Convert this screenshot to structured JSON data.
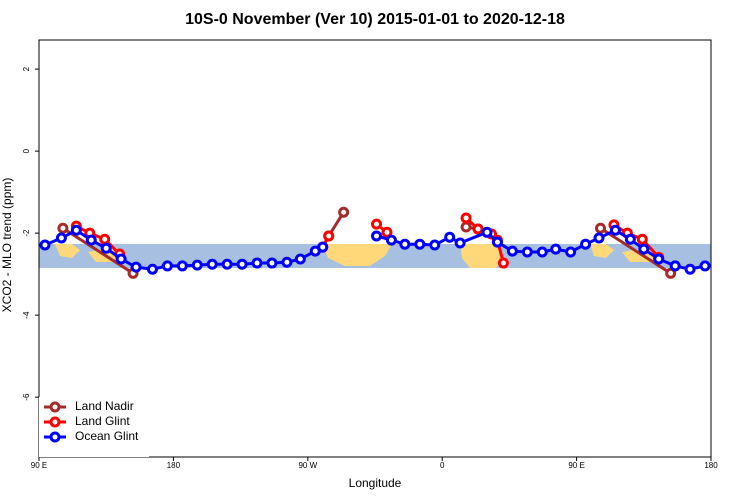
{
  "chart_data": {
    "type": "line",
    "title": "10S-0 November (Ver 10)   2015-01-01 to 2020-12-18",
    "x_label": "Longitude",
    "y_label": "XCO2 - MLO trend (ppm)",
    "xlim": [
      90,
      540
    ],
    "xticks": [
      {
        "value": 90,
        "label": "90 E"
      },
      180,
      {
        "value": 270,
        "label": "90 W"
      },
      {
        "value": 360,
        "label": "0"
      },
      {
        "value": 450,
        "label": "90 E"
      },
      {
        "value": 540,
        "label": "180"
      }
    ],
    "ylim": [
      -7.46,
      2.71
    ],
    "yticks": [
      -6,
      -4,
      -2,
      0,
      2
    ],
    "legend": "bottom-left",
    "series": [
      {
        "name": "Land Nadir",
        "color": "#a52a2a",
        "x": [
          106,
          153,
          220,
          284,
          294,
          335,
          376,
          384,
          430,
          466,
          513
        ],
        "values": [
          -1.88,
          -2.98,
          null,
          -2.07,
          -1.49,
          null,
          -1.85,
          -1.9,
          null,
          -1.88,
          -2.98
        ]
      },
      {
        "name": "Land Glint",
        "color": "#ff0000",
        "x": [
          115,
          124,
          134,
          144,
          210,
          280,
          284,
          300,
          316,
          323,
          350,
          376,
          384,
          393,
          397,
          401,
          440,
          475,
          484,
          494,
          505
        ],
        "values": [
          -1.83,
          -2.0,
          -2.15,
          -2.51,
          null,
          -2.34,
          -2.07,
          null,
          -1.78,
          -1.98,
          null,
          -1.63,
          -1.9,
          -2.02,
          -2.17,
          -2.73,
          null,
          -1.8,
          -2.0,
          -2.15,
          -2.59
        ]
      },
      {
        "name": "Ocean Glint",
        "color": "#0000ff",
        "x": [
          94,
          105,
          115,
          125,
          135,
          145,
          155,
          166,
          176,
          186,
          196,
          206,
          216,
          226,
          236,
          246,
          256,
          265,
          275,
          280,
          298,
          316,
          326,
          335,
          345,
          355,
          365,
          372,
          390,
          397,
          407,
          417,
          427,
          436,
          446,
          456,
          465,
          476,
          486,
          495,
          505,
          516,
          526,
          536
        ],
        "values": [
          -2.29,
          -2.12,
          -1.93,
          -2.17,
          -2.37,
          -2.63,
          -2.83,
          -2.88,
          -2.8,
          -2.8,
          -2.78,
          -2.76,
          -2.76,
          -2.76,
          -2.73,
          -2.73,
          -2.71,
          -2.63,
          -2.44,
          -2.34,
          null,
          -2.07,
          -2.17,
          -2.27,
          -2.27,
          -2.29,
          -2.1,
          -2.24,
          -1.98,
          -2.22,
          -2.44,
          -2.46,
          -2.46,
          -2.39,
          -2.46,
          -2.27,
          -2.12,
          -1.93,
          -2.15,
          -2.39,
          -2.63,
          -2.8,
          -2.88,
          -2.8
        ]
      }
    ]
  }
}
